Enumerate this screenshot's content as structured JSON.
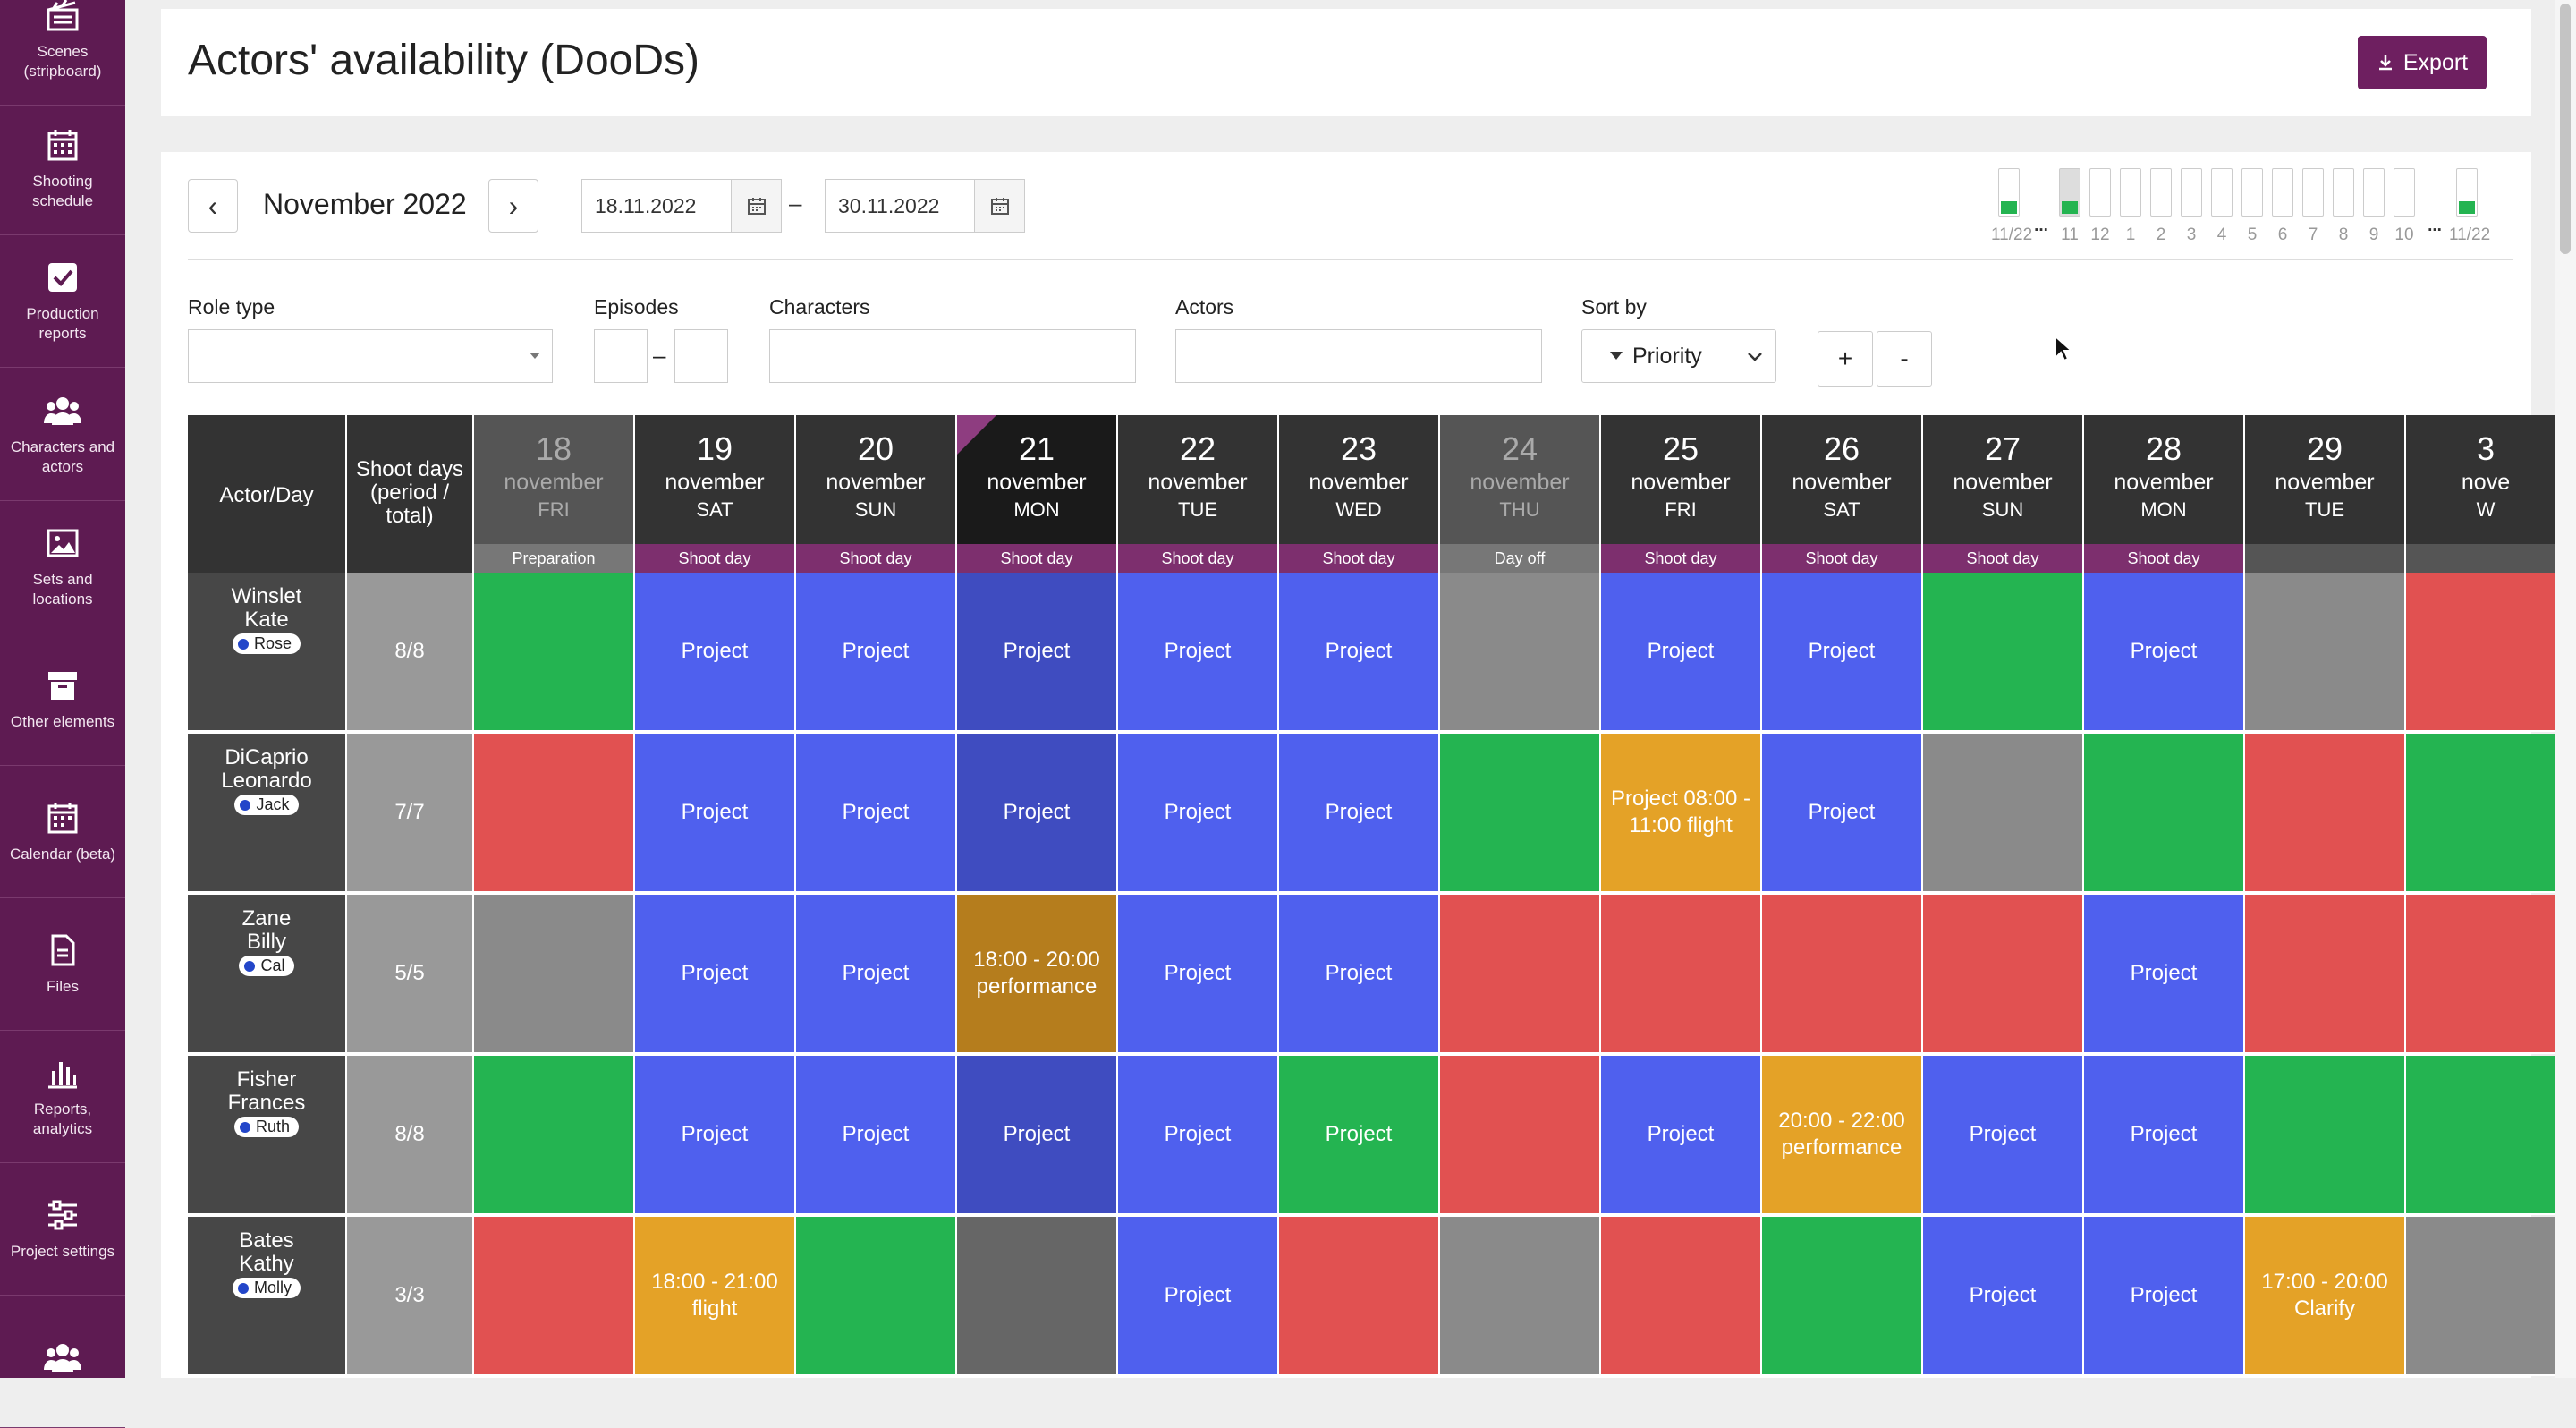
{
  "sidebar": {
    "items": [
      {
        "label": "Scenes (stripboard)",
        "icon": "clapperboard-icon"
      },
      {
        "label": "Shooting schedule",
        "icon": "calendar-grid-icon"
      },
      {
        "label": "Production reports",
        "icon": "checkbox-icon"
      },
      {
        "label": "Characters and actors",
        "icon": "people-icon"
      },
      {
        "label": "Sets and locations",
        "icon": "image-icon"
      },
      {
        "label": "Other elements",
        "icon": "archive-box-icon"
      },
      {
        "label": "Calendar (beta)",
        "icon": "calendar-icon"
      },
      {
        "label": "Files",
        "icon": "file-icon"
      },
      {
        "label": "Reports, analytics",
        "icon": "bar-chart-icon"
      },
      {
        "label": "Project settings",
        "icon": "sliders-icon"
      },
      {
        "label": "",
        "icon": "people-icon"
      }
    ]
  },
  "header": {
    "title": "Actors' availability (DooDs)",
    "export_label": "Export"
  },
  "toolbar": {
    "prev": "‹",
    "next": "›",
    "month": "November 2022",
    "date_from": "18.11.2022",
    "date_to": "30.11.2022",
    "dash": "–"
  },
  "timeline": {
    "labels": [
      "11/22",
      "11",
      "12",
      "1",
      "2",
      "3",
      "4",
      "5",
      "6",
      "7",
      "8",
      "9",
      "10",
      "11/22"
    ],
    "ellipsis": "..."
  },
  "filters": {
    "role_type_label": "Role type",
    "episodes_label": "Episodes",
    "episodes_dash": "–",
    "characters_label": "Characters",
    "actors_label": "Actors",
    "sort_label": "Sort by",
    "sort_value": "Priority",
    "plus": "+",
    "minus": "-"
  },
  "grid": {
    "header_actor": "Actor/Day",
    "header_shoot": "Shoot days (period / total)",
    "days": [
      {
        "num": "18",
        "month": "november",
        "weekday": "FRI",
        "type": "Preparation"
      },
      {
        "num": "19",
        "month": "november",
        "weekday": "SAT",
        "type": "Shoot day"
      },
      {
        "num": "20",
        "month": "november",
        "weekday": "SUN",
        "type": "Shoot day"
      },
      {
        "num": "21",
        "month": "november",
        "weekday": "MON",
        "type": "Shoot day"
      },
      {
        "num": "22",
        "month": "november",
        "weekday": "TUE",
        "type": "Shoot day"
      },
      {
        "num": "23",
        "month": "november",
        "weekday": "WED",
        "type": "Shoot day"
      },
      {
        "num": "24",
        "month": "november",
        "weekday": "THU",
        "type": "Day off"
      },
      {
        "num": "25",
        "month": "november",
        "weekday": "FRI",
        "type": "Shoot day"
      },
      {
        "num": "26",
        "month": "november",
        "weekday": "SAT",
        "type": "Shoot day"
      },
      {
        "num": "27",
        "month": "november",
        "weekday": "SUN",
        "type": "Shoot day"
      },
      {
        "num": "28",
        "month": "november",
        "weekday": "MON",
        "type": "Shoot day"
      },
      {
        "num": "29",
        "month": "november",
        "weekday": "TUE",
        "type": ""
      },
      {
        "num": "3",
        "month": "nove",
        "weekday": "W",
        "type": ""
      }
    ],
    "rows": [
      {
        "last": "Winslet",
        "first": "Kate",
        "character": "Rose",
        "shoot": "8/8",
        "cells": [
          [
            "green",
            ""
          ],
          [
            "blue",
            "Project"
          ],
          [
            "blue",
            "Project"
          ],
          [
            "blue",
            "Project"
          ],
          [
            "blue",
            "Project"
          ],
          [
            "blue",
            "Project"
          ],
          [
            "gray",
            ""
          ],
          [
            "blue",
            "Project"
          ],
          [
            "blue",
            "Project"
          ],
          [
            "green",
            ""
          ],
          [
            "blue",
            "Project"
          ],
          [
            "gray",
            ""
          ],
          [
            "red",
            ""
          ]
        ]
      },
      {
        "last": "DiCaprio",
        "first": "Leonardo",
        "character": "Jack",
        "shoot": "7/7",
        "cells": [
          [
            "red",
            ""
          ],
          [
            "blue",
            "Project"
          ],
          [
            "blue",
            "Project"
          ],
          [
            "blue",
            "Project"
          ],
          [
            "blue",
            "Project"
          ],
          [
            "blue",
            "Project"
          ],
          [
            "green",
            ""
          ],
          [
            "orange",
            "Project 08:00 - 11:00 flight"
          ],
          [
            "blue",
            "Project"
          ],
          [
            "gray",
            ""
          ],
          [
            "green",
            ""
          ],
          [
            "red",
            ""
          ],
          [
            "green",
            ""
          ]
        ]
      },
      {
        "last": "Zane",
        "first": "Billy",
        "character": "Cal",
        "shoot": "5/5",
        "cells": [
          [
            "gray",
            ""
          ],
          [
            "blue",
            "Project"
          ],
          [
            "blue",
            "Project"
          ],
          [
            "orange",
            "18:00 - 20:00 performance"
          ],
          [
            "blue",
            "Project"
          ],
          [
            "blue",
            "Project"
          ],
          [
            "red",
            ""
          ],
          [
            "red",
            ""
          ],
          [
            "red",
            ""
          ],
          [
            "red",
            ""
          ],
          [
            "blue",
            "Project"
          ],
          [
            "red",
            ""
          ],
          [
            "red",
            ""
          ]
        ]
      },
      {
        "last": "Fisher",
        "first": "Frances",
        "character": "Ruth",
        "shoot": "8/8",
        "cells": [
          [
            "green",
            ""
          ],
          [
            "blue",
            "Project"
          ],
          [
            "blue",
            "Project"
          ],
          [
            "blue",
            "Project"
          ],
          [
            "blue",
            "Project"
          ],
          [
            "green",
            "Project"
          ],
          [
            "red",
            ""
          ],
          [
            "blue",
            "Project"
          ],
          [
            "orange",
            "20:00 - 22:00 performance"
          ],
          [
            "blue",
            "Project"
          ],
          [
            "blue",
            "Project"
          ],
          [
            "green",
            ""
          ],
          [
            "green",
            ""
          ]
        ]
      },
      {
        "last": "Bates",
        "first": "Kathy",
        "character": "Molly",
        "shoot": "3/3",
        "cells": [
          [
            "red",
            ""
          ],
          [
            "orange",
            "18:00 - 21:00 flight"
          ],
          [
            "green",
            ""
          ],
          [
            "gray",
            ""
          ],
          [
            "blue",
            "Project"
          ],
          [
            "red",
            ""
          ],
          [
            "gray",
            ""
          ],
          [
            "red",
            ""
          ],
          [
            "green",
            ""
          ],
          [
            "blue",
            "Project"
          ],
          [
            "blue",
            "Project"
          ],
          [
            "orange",
            "17:00 - 20:00 Clarify"
          ],
          [
            "gray",
            ""
          ]
        ]
      }
    ]
  },
  "colors": {
    "brand": "#6e1f60",
    "blue": "#4f60ee",
    "green": "#24b451",
    "red": "#e15151",
    "gray": "#8a8a8a",
    "orange": "#e4a227"
  }
}
